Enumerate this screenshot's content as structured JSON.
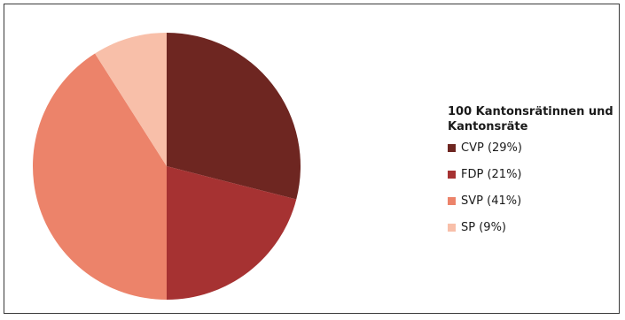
{
  "chart_data": {
    "type": "pie",
    "title": "100 Kantonsrätinnen und Kantonsräte",
    "legend_placement": "right",
    "slices": [
      {
        "label": "CVP (29%)",
        "name": "CVP",
        "value": 29,
        "color": "#6e2621"
      },
      {
        "label": "FDP (21%)",
        "name": "FDP",
        "value": 21,
        "color": "#a63232"
      },
      {
        "label": "SVP (41%)",
        "name": "SVP",
        "value": 41,
        "color": "#ec836a"
      },
      {
        "label": "SP (9%)",
        "name": "SP",
        "value": 9,
        "color": "#f8bfa9"
      }
    ]
  }
}
